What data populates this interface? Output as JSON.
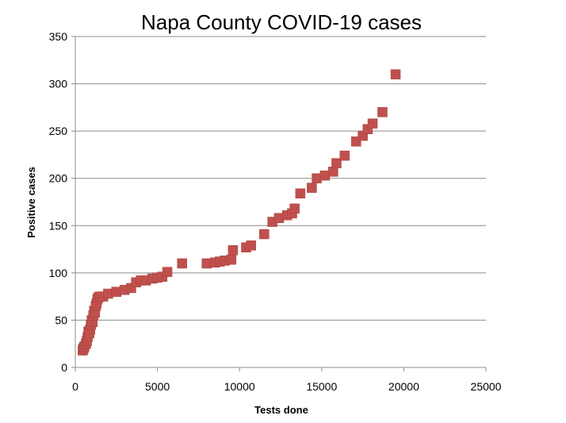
{
  "chart_data": {
    "type": "scatter",
    "title": "Napa County COVID-19 cases",
    "xlabel": "Tests done",
    "ylabel": "Positive cases",
    "xlim": [
      0,
      25000
    ],
    "ylim": [
      0,
      350
    ],
    "xticks": [
      0,
      5000,
      10000,
      15000,
      20000,
      25000
    ],
    "yticks": [
      0,
      50,
      100,
      150,
      200,
      250,
      300,
      350
    ],
    "grid": "horizontal",
    "marker_color": "#c0504d",
    "series": [
      {
        "name": "Positive cases",
        "points": [
          [
            450,
            18
          ],
          [
            500,
            20
          ],
          [
            550,
            22
          ],
          [
            650,
            25
          ],
          [
            700,
            28
          ],
          [
            750,
            32
          ],
          [
            800,
            38
          ],
          [
            850,
            36
          ],
          [
            900,
            40
          ],
          [
            950,
            45
          ],
          [
            1000,
            50
          ],
          [
            1050,
            48
          ],
          [
            1100,
            55
          ],
          [
            1150,
            60
          ],
          [
            1200,
            58
          ],
          [
            1250,
            65
          ],
          [
            1300,
            68
          ],
          [
            1350,
            72
          ],
          [
            1400,
            74
          ],
          [
            1500,
            75
          ],
          [
            1700,
            75
          ],
          [
            2000,
            78
          ],
          [
            2500,
            80
          ],
          [
            3000,
            82
          ],
          [
            3400,
            84
          ],
          [
            3700,
            90
          ],
          [
            4000,
            92
          ],
          [
            4300,
            92
          ],
          [
            4700,
            94
          ],
          [
            5000,
            95
          ],
          [
            5300,
            96
          ],
          [
            5600,
            101
          ],
          [
            6500,
            110
          ],
          [
            8000,
            110
          ],
          [
            8500,
            111
          ],
          [
            8800,
            112
          ],
          [
            9100,
            113
          ],
          [
            9500,
            114
          ],
          [
            9600,
            124
          ],
          [
            10400,
            127
          ],
          [
            10700,
            129
          ],
          [
            11500,
            141
          ],
          [
            12000,
            154
          ],
          [
            12400,
            158
          ],
          [
            12900,
            161
          ],
          [
            13200,
            163
          ],
          [
            13350,
            168
          ],
          [
            13700,
            184
          ],
          [
            14400,
            190
          ],
          [
            14700,
            200
          ],
          [
            15200,
            203
          ],
          [
            15700,
            207
          ],
          [
            15900,
            216
          ],
          [
            16400,
            224
          ],
          [
            17100,
            239
          ],
          [
            17500,
            245
          ],
          [
            17800,
            252
          ],
          [
            18100,
            258
          ],
          [
            18700,
            270
          ],
          [
            19500,
            310
          ]
        ]
      }
    ]
  }
}
